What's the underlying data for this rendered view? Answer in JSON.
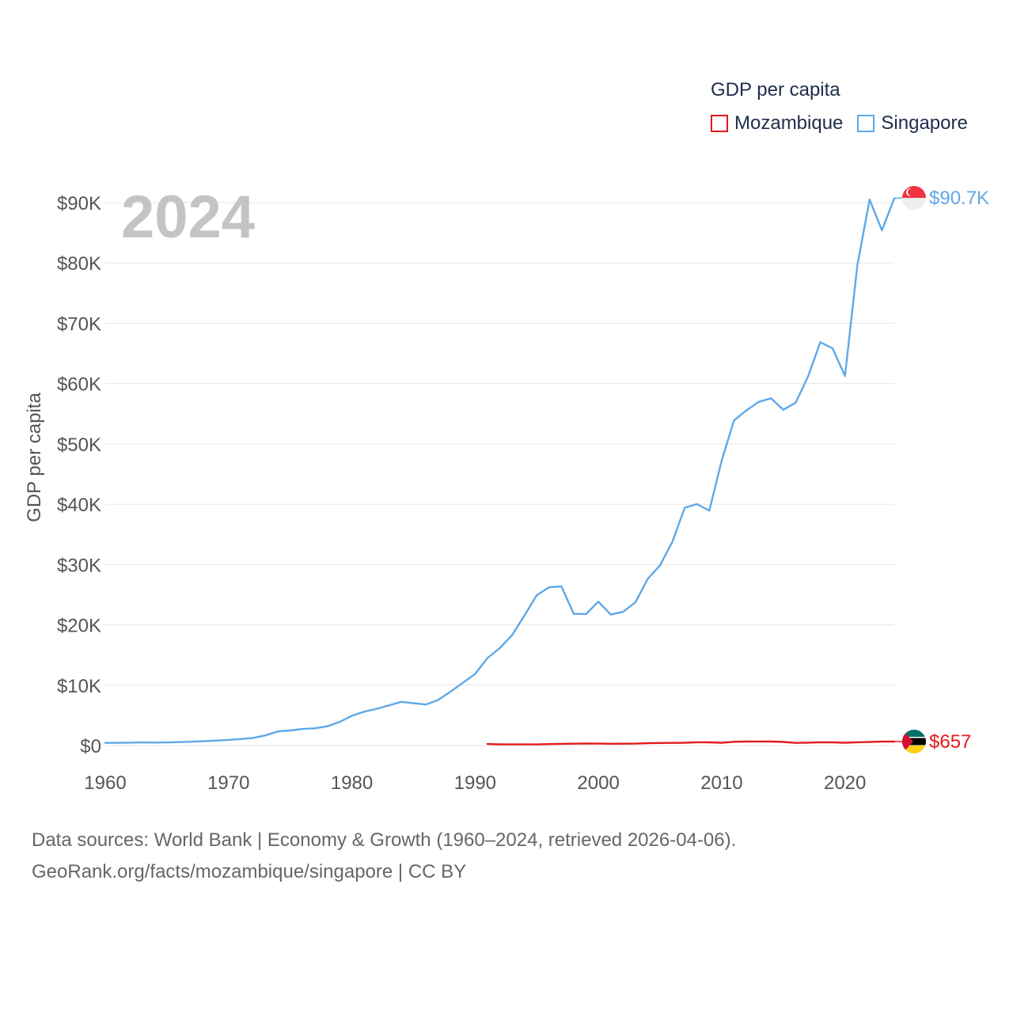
{
  "legend": {
    "title": "GDP per capita",
    "items": [
      {
        "name": "Mozambique",
        "color": "#e31a1c"
      },
      {
        "name": "Singapore",
        "color": "#5fa8e8"
      }
    ]
  },
  "year_label": "2024",
  "footer": {
    "line1": "Data sources: World Bank | Economy & Growth (1960–2024, retrieved 2026-04-06).",
    "line2": "GeoRank.org/facts/mozambique/singapore | CC BY"
  },
  "chart_data": {
    "type": "line",
    "title": "",
    "xlabel": "",
    "ylabel": "GDP per capita",
    "xlim": [
      1960,
      2024
    ],
    "ylim": [
      0,
      90000
    ],
    "x_ticks": [
      1960,
      1970,
      1980,
      1990,
      2000,
      2010,
      2020
    ],
    "x_tick_labels": [
      "1960",
      "1970",
      "1980",
      "1990",
      "2000",
      "2010",
      "2020"
    ],
    "y_ticks": [
      0,
      10000,
      20000,
      30000,
      40000,
      50000,
      60000,
      70000,
      80000,
      90000
    ],
    "y_tick_labels": [
      "$0",
      "$10K",
      "$20K",
      "$30K",
      "$40K",
      "$50K",
      "$60K",
      "$70K",
      "$80K",
      "$90K"
    ],
    "grid": true,
    "legend_position": "top-right",
    "series": [
      {
        "name": "Singapore",
        "color": "#5fa8e8",
        "end_label": "$90.7K",
        "x": [
          1960,
          1961,
          1962,
          1963,
          1964,
          1965,
          1966,
          1967,
          1968,
          1969,
          1970,
          1971,
          1972,
          1973,
          1974,
          1975,
          1976,
          1977,
          1978,
          1979,
          1980,
          1981,
          1982,
          1983,
          1984,
          1985,
          1986,
          1987,
          1988,
          1989,
          1990,
          1991,
          1992,
          1993,
          1994,
          1995,
          1996,
          1997,
          1998,
          1999,
          2000,
          2001,
          2002,
          2003,
          2004,
          2005,
          2006,
          2007,
          2008,
          2009,
          2010,
          2011,
          2012,
          2013,
          2014,
          2015,
          2016,
          2017,
          2018,
          2019,
          2020,
          2021,
          2022,
          2023,
          2024
        ],
        "values": [
          428,
          450,
          472,
          512,
          485,
          516,
          567,
          626,
          709,
          813,
          925,
          1074,
          1264,
          1685,
          2341,
          2490,
          2746,
          2846,
          3194,
          3900,
          4928,
          5596,
          6078,
          6633,
          7238,
          7002,
          6800,
          7539,
          8917,
          10394,
          11864,
          14502,
          16136,
          18302,
          21553,
          24915,
          26233,
          26375,
          21829,
          21796,
          23852,
          21700,
          22160,
          23730,
          27610,
          29870,
          33770,
          39430,
          40010,
          38930,
          47240,
          53890,
          55550,
          56970,
          57560,
          55650,
          56830,
          61160,
          66860,
          65830,
          61270,
          79600,
          90500,
          85400,
          90700
        ]
      },
      {
        "name": "Mozambique",
        "color": "#e31a1c",
        "end_label": "$657",
        "x": [
          1991,
          1992,
          1993,
          1994,
          1995,
          1996,
          1997,
          1998,
          1999,
          2000,
          2001,
          2002,
          2003,
          2004,
          2005,
          2006,
          2007,
          2008,
          2009,
          2010,
          2011,
          2012,
          2013,
          2014,
          2015,
          2016,
          2017,
          2018,
          2019,
          2020,
          2021,
          2022,
          2023,
          2024
        ],
        "values": [
          250,
          190,
          190,
          180,
          180,
          230,
          270,
          300,
          330,
          310,
          290,
          300,
          320,
          380,
          420,
          430,
          460,
          540,
          530,
          460,
          620,
          650,
          670,
          660,
          590,
          430,
          470,
          540,
          530,
          460,
          540,
          580,
          640,
          657
        ]
      }
    ]
  }
}
